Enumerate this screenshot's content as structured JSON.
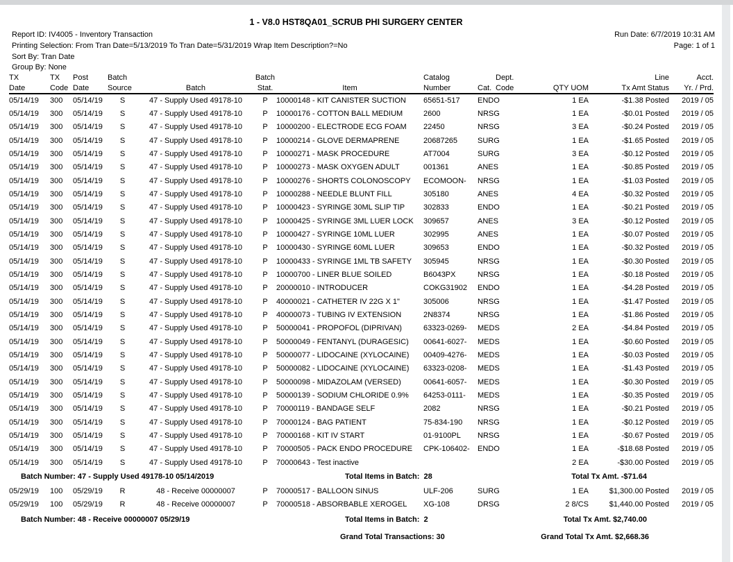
{
  "header": {
    "title": "1 - V8.0 HST8QA01_SCRUB PHI SURGERY CENTER",
    "report_id": "Report ID: IV4005 - Inventory Transaction",
    "printing_selection": "Printing Selection: From Tran Date=5/13/2019 To Tran Date=5/31/2019 Wrap Item Description?=No",
    "sort_by": "Sort By: Tran Date",
    "group_by": "Group By: None",
    "run_date": "Run Date: 6/7/2019 10:31 AM",
    "page": "Page: 1 of 1"
  },
  "table": {
    "columns": [
      {
        "l1": "TX",
        "l2": "Date"
      },
      {
        "l1": "TX",
        "l2": "Code"
      },
      {
        "l1": "Post",
        "l2": "Date"
      },
      {
        "l1": "Batch",
        "l2": "Source"
      },
      {
        "l1": "",
        "l2": "Batch"
      },
      {
        "l1": "Batch",
        "l2": "Stat."
      },
      {
        "l1": "",
        "l2": "Item"
      },
      {
        "l1": "Catalog",
        "l2": "Number"
      },
      {
        "l1": "",
        "l2": "Cat."
      },
      {
        "l1": "Dept.",
        "l2": "Code"
      },
      {
        "l1": "",
        "l2": "QTY UOM"
      },
      {
        "l1": "Line",
        "l2": "Tx Amt Status"
      },
      {
        "l1": "Acct.",
        "l2": "Yr. / Prd."
      }
    ]
  },
  "batches": [
    {
      "rows": [
        [
          "05/14/19",
          "300",
          "05/14/19",
          "S",
          "47 - Supply Used 49178-10",
          "P",
          "10000148 - KIT CANISTER SUCTION",
          "65651-517",
          "ENDO",
          "",
          "1 EA",
          "-$1.38 Posted",
          "2019 / 05"
        ],
        [
          "05/14/19",
          "300",
          "05/14/19",
          "S",
          "47 - Supply Used 49178-10",
          "P",
          "10000176 - COTTON BALL MEDIUM",
          "2600",
          "NRSG",
          "",
          "1 EA",
          "-$0.01 Posted",
          "2019 / 05"
        ],
        [
          "05/14/19",
          "300",
          "05/14/19",
          "S",
          "47 - Supply Used 49178-10",
          "P",
          "10000200 - ELECTRODE ECG FOAM",
          "22450",
          "NRSG",
          "",
          "3 EA",
          "-$0.24 Posted",
          "2019 / 05"
        ],
        [
          "05/14/19",
          "300",
          "05/14/19",
          "S",
          "47 - Supply Used 49178-10",
          "P",
          "10000214 - GLOVE DERMAPRENE",
          "20687265",
          "SURG",
          "",
          "1 EA",
          "-$1.65 Posted",
          "2019 / 05"
        ],
        [
          "05/14/19",
          "300",
          "05/14/19",
          "S",
          "47 - Supply Used 49178-10",
          "P",
          "10000271 - MASK PROCEDURE",
          "AT7004",
          "SURG",
          "",
          "3 EA",
          "-$0.12 Posted",
          "2019 / 05"
        ],
        [
          "05/14/19",
          "300",
          "05/14/19",
          "S",
          "47 - Supply Used 49178-10",
          "P",
          "10000273 - MASK OXYGEN ADULT",
          "001361",
          "ANES",
          "",
          "1 EA",
          "-$0.85 Posted",
          "2019 / 05"
        ],
        [
          "05/14/19",
          "300",
          "05/14/19",
          "S",
          "47 - Supply Used 49178-10",
          "P",
          "10000276 - SHORTS COLONOSCOPY",
          "ECOMOON-",
          "NRSG",
          "",
          "1 EA",
          "-$1.03 Posted",
          "2019 / 05"
        ],
        [
          "05/14/19",
          "300",
          "05/14/19",
          "S",
          "47 - Supply Used 49178-10",
          "P",
          "10000288 - NEEDLE BLUNT FILL",
          "305180",
          "ANES",
          "",
          "4 EA",
          "-$0.32 Posted",
          "2019 / 05"
        ],
        [
          "05/14/19",
          "300",
          "05/14/19",
          "S",
          "47 - Supply Used 49178-10",
          "P",
          "10000423 - SYRINGE 30ML SLIP TIP",
          "302833",
          "ENDO",
          "",
          "1 EA",
          "-$0.21 Posted",
          "2019 / 05"
        ],
        [
          "05/14/19",
          "300",
          "05/14/19",
          "S",
          "47 - Supply Used 49178-10",
          "P",
          "10000425 - SYRINGE 3ML LUER LOCK",
          "309657",
          "ANES",
          "",
          "3 EA",
          "-$0.12 Posted",
          "2019 / 05"
        ],
        [
          "05/14/19",
          "300",
          "05/14/19",
          "S",
          "47 - Supply Used 49178-10",
          "P",
          "10000427 - SYRINGE 10ML LUER",
          "302995",
          "ANES",
          "",
          "1 EA",
          "-$0.07 Posted",
          "2019 / 05"
        ],
        [
          "05/14/19",
          "300",
          "05/14/19",
          "S",
          "47 - Supply Used 49178-10",
          "P",
          "10000430 - SYRINGE 60ML LUER",
          "309653",
          "ENDO",
          "",
          "1 EA",
          "-$0.32 Posted",
          "2019 / 05"
        ],
        [
          "05/14/19",
          "300",
          "05/14/19",
          "S",
          "47 - Supply Used 49178-10",
          "P",
          "10000433 - SYRINGE 1ML TB SAFETY",
          "305945",
          "NRSG",
          "",
          "1 EA",
          "-$0.30 Posted",
          "2019 / 05"
        ],
        [
          "05/14/19",
          "300",
          "05/14/19",
          "S",
          "47 - Supply Used 49178-10",
          "P",
          "10000700 - LINER BLUE SOILED",
          "B6043PX",
          "NRSG",
          "",
          "1 EA",
          "-$0.18 Posted",
          "2019 / 05"
        ],
        [
          "05/14/19",
          "300",
          "05/14/19",
          "S",
          "47 - Supply Used 49178-10",
          "P",
          "20000010 - INTRODUCER",
          "COKG31902",
          "ENDO",
          "",
          "1 EA",
          "-$4.28 Posted",
          "2019 / 05"
        ],
        [
          "05/14/19",
          "300",
          "05/14/19",
          "S",
          "47 - Supply Used 49178-10",
          "P",
          "40000021 - CATHETER IV 22G X 1\"",
          "305006",
          "NRSG",
          "",
          "1 EA",
          "-$1.47 Posted",
          "2019 / 05"
        ],
        [
          "05/14/19",
          "300",
          "05/14/19",
          "S",
          "47 - Supply Used 49178-10",
          "P",
          "40000073 - TUBING IV EXTENSION",
          "2N8374",
          "NRSG",
          "",
          "1 EA",
          "-$1.86 Posted",
          "2019 / 05"
        ],
        [
          "05/14/19",
          "300",
          "05/14/19",
          "S",
          "47 - Supply Used 49178-10",
          "P",
          "50000041 - PROPOFOL (DIPRIVAN)",
          "63323-0269-",
          "MEDS",
          "",
          "2 EA",
          "-$4.84 Posted",
          "2019 / 05"
        ],
        [
          "05/14/19",
          "300",
          "05/14/19",
          "S",
          "47 - Supply Used 49178-10",
          "P",
          "50000049 - FENTANYL (DURAGESIC)",
          "00641-6027-",
          "MEDS",
          "",
          "1 EA",
          "-$0.60 Posted",
          "2019 / 05"
        ],
        [
          "05/14/19",
          "300",
          "05/14/19",
          "S",
          "47 - Supply Used 49178-10",
          "P",
          "50000077 - LIDOCAINE (XYLOCAINE)",
          "00409-4276-",
          "MEDS",
          "",
          "1 EA",
          "-$0.03 Posted",
          "2019 / 05"
        ],
        [
          "05/14/19",
          "300",
          "05/14/19",
          "S",
          "47 - Supply Used 49178-10",
          "P",
          "50000082 - LIDOCAINE (XYLOCAINE)",
          "63323-0208-",
          "MEDS",
          "",
          "1 EA",
          "-$1.43 Posted",
          "2019 / 05"
        ],
        [
          "05/14/19",
          "300",
          "05/14/19",
          "S",
          "47 - Supply Used 49178-10",
          "P",
          "50000098 - MIDAZOLAM (VERSED)",
          "00641-6057-",
          "MEDS",
          "",
          "1 EA",
          "-$0.30 Posted",
          "2019 / 05"
        ],
        [
          "05/14/19",
          "300",
          "05/14/19",
          "S",
          "47 - Supply Used 49178-10",
          "P",
          "50000139 - SODIUM CHLORIDE 0.9%",
          "64253-0111-",
          "MEDS",
          "",
          "1 EA",
          "-$0.35 Posted",
          "2019 / 05"
        ],
        [
          "05/14/19",
          "300",
          "05/14/19",
          "S",
          "47 - Supply Used 49178-10",
          "P",
          "70000119 - BANDAGE SELF",
          "2082",
          "NRSG",
          "",
          "1 EA",
          "-$0.21 Posted",
          "2019 / 05"
        ],
        [
          "05/14/19",
          "300",
          "05/14/19",
          "S",
          "47 - Supply Used 49178-10",
          "P",
          "70000124 - BAG PATIENT",
          "75-834-190",
          "NRSG",
          "",
          "1 EA",
          "-$0.12 Posted",
          "2019 / 05"
        ],
        [
          "05/14/19",
          "300",
          "05/14/19",
          "S",
          "47 - Supply Used 49178-10",
          "P",
          "70000168 - KIT IV START",
          "01-9100PL",
          "NRSG",
          "",
          "1 EA",
          "-$0.67 Posted",
          "2019 / 05"
        ],
        [
          "05/14/19",
          "300",
          "05/14/19",
          "S",
          "47 - Supply Used 49178-10",
          "P",
          "70000505 - PACK ENDO PROCEDURE",
          "CPK-106402-",
          "ENDO",
          "",
          "1 EA",
          "-$18.68 Posted",
          "2019 / 05"
        ],
        [
          "05/14/19",
          "300",
          "05/14/19",
          "S",
          "47 - Supply Used 49178-10",
          "P",
          "70000643 - Test inactive",
          "",
          "",
          "",
          "2 EA",
          "-$30.00 Posted",
          "2019 / 05"
        ]
      ],
      "summary": {
        "label": "Batch Number: 47 - Supply Used 49178-10 05/14/2019",
        "items": "Total Items in Batch:  28",
        "amount": "Total Tx Amt. -$71.64"
      }
    },
    {
      "rows": [
        [
          "05/29/19",
          "100",
          "05/29/19",
          "R",
          "48 - Receive 00000007",
          "P",
          "70000517 - BALLOON SINUS",
          "ULF-206",
          "SURG",
          "",
          "1 EA",
          "$1,300.00 Posted",
          "2019 / 05"
        ],
        [
          "05/29/19",
          "100",
          "05/29/19",
          "R",
          "48 - Receive 00000007",
          "P",
          "70000518 - ABSORBABLE XEROGEL",
          "XG-108",
          "DRSG",
          "",
          "2 8/CS",
          "$1,440.00 Posted",
          "2019 / 05"
        ]
      ],
      "summary": {
        "label": "Batch Number: 48 - Receive 00000007 05/29/19",
        "items": "Total Items in Batch:  2",
        "amount": "Total Tx Amt. $2,740.00"
      }
    }
  ],
  "grand_total": {
    "transactions": "Grand Total Transactions: 30",
    "amount": "Grand Total Tx Amt. $2,668.36"
  }
}
